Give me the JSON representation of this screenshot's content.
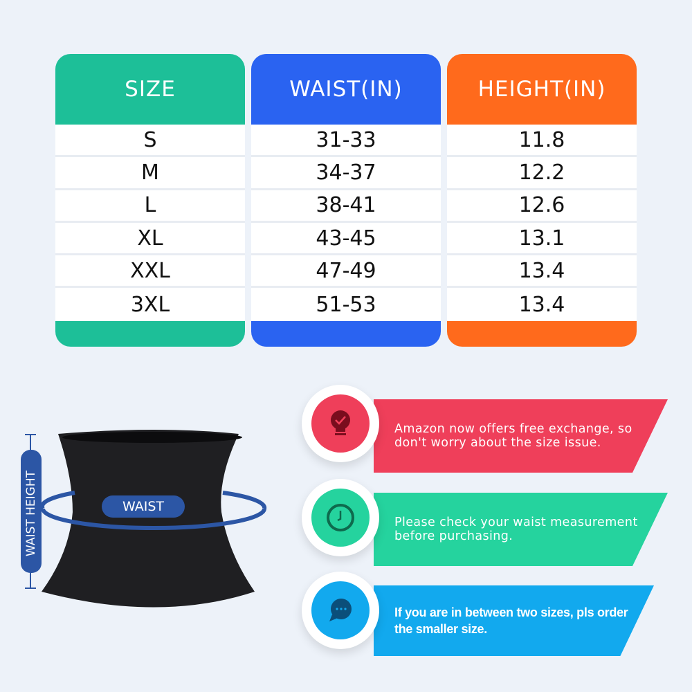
{
  "table": {
    "columns": [
      {
        "header": "SIZE",
        "color": "#1dbf98",
        "values": [
          "S",
          "M",
          "L",
          "XL",
          "XXL",
          "3XL"
        ]
      },
      {
        "header": "WAIST(IN)",
        "color": "#2a63f1",
        "values": [
          "31-33",
          "34-37",
          "38-41",
          "43-45",
          "47-49",
          "51-53"
        ]
      },
      {
        "header": "HEIGHT(IN)",
        "color": "#ff6a1c",
        "values": [
          "11.8",
          "12.2",
          "12.6",
          "13.1",
          "13.4",
          "13.4"
        ]
      }
    ]
  },
  "diagram": {
    "waist_label": "WAIST",
    "height_label": "WAIST HEIGHT",
    "accent": "#2c56a5"
  },
  "tips": [
    {
      "icon": "lightbulb-check-icon",
      "color": "#ef3f5a",
      "text": "Amazon now offers free exchange, so don't worry about the size issue."
    },
    {
      "icon": "clock-icon",
      "color": "#25d39e",
      "text": "Please check your waist measurement before purchasing."
    },
    {
      "icon": "chat-bubble-icon",
      "color": "#12a9ee",
      "text": "If you are in between two sizes, pls order the smaller size."
    }
  ]
}
